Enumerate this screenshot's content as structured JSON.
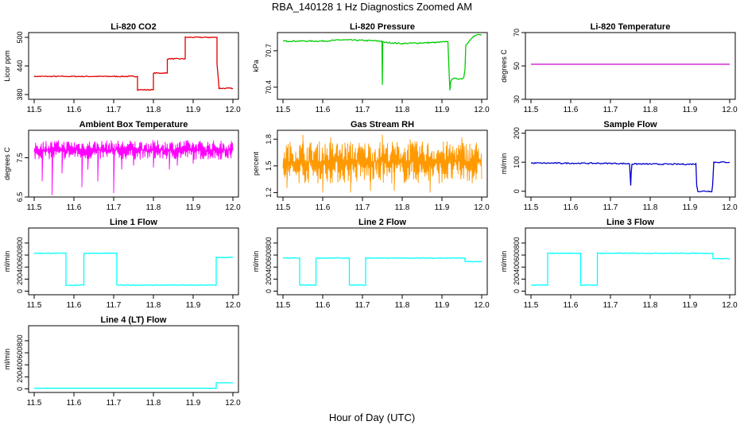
{
  "title": "RBA_140128  1 Hz Diagnostics Zoomed AM",
  "xlabel": "Hour of Day (UTC)",
  "colors": {
    "axis": "#000000"
  },
  "chart_data": [
    {
      "type": "line",
      "title": "Li-820 CO2",
      "ylabel": "Licor ppm",
      "color": "#e00000",
      "xlim": [
        11.5,
        12.0
      ],
      "ylim": [
        370,
        510
      ],
      "xticks": [
        "11.5",
        "11.6",
        "11.7",
        "11.8",
        "11.9",
        "12.0"
      ],
      "yticks": [
        "380",
        "440",
        "500"
      ],
      "series": [
        {
          "style": "step",
          "noise": 1,
          "x": [
            11.5,
            11.76,
            11.76,
            11.8,
            11.8,
            11.835,
            11.835,
            11.88,
            11.88,
            11.96,
            11.96,
            11.965,
            11.965,
            12.0
          ],
          "y": [
            418,
            418,
            390,
            390,
            425,
            425,
            455,
            455,
            500,
            500,
            445,
            395,
            393,
            393
          ]
        }
      ]
    },
    {
      "type": "line",
      "title": "Li-820 Pressure",
      "ylabel": "kPa",
      "color": "#00cc00",
      "xlim": [
        11.5,
        12.0
      ],
      "ylim": [
        70.3,
        70.85
      ],
      "xticks": [
        "11.5",
        "11.6",
        "11.7",
        "11.8",
        "11.9",
        "12.0"
      ],
      "yticks": [
        "70.4",
        "70.7"
      ],
      "series": [
        {
          "style": "line",
          "noise": 0.005,
          "x": [
            11.5,
            11.6,
            11.65,
            11.749,
            11.75,
            11.751,
            11.8,
            11.9,
            11.915,
            11.918,
            11.92,
            11.922,
            11.925,
            11.95,
            11.955,
            11.958,
            11.96,
            11.975,
            11.98,
            11.99,
            12.0
          ],
          "y": [
            70.78,
            70.78,
            70.79,
            70.78,
            70.42,
            70.77,
            70.76,
            70.77,
            70.78,
            70.52,
            70.37,
            70.45,
            70.47,
            70.47,
            70.48,
            70.55,
            70.75,
            70.8,
            70.82,
            70.83,
            70.83
          ]
        }
      ]
    },
    {
      "type": "line",
      "title": "Li-820 Temperature",
      "ylabel": "degrees C",
      "color": "#cc00cc",
      "xlim": [
        11.5,
        12.0
      ],
      "ylim": [
        30,
        70
      ],
      "xticks": [
        "11.5",
        "11.6",
        "11.7",
        "11.8",
        "11.9",
        "12.0"
      ],
      "yticks": [
        "30",
        "50",
        "70"
      ],
      "series": [
        {
          "style": "line",
          "noise": 0,
          "x": [
            11.5,
            12.0
          ],
          "y": [
            51,
            51
          ]
        }
      ]
    },
    {
      "type": "line",
      "title": "Ambient Box Temperature",
      "ylabel": "degrees C",
      "color": "#ff00ff",
      "xlim": [
        11.5,
        12.0
      ],
      "ylim": [
        6.5,
        8.2
      ],
      "xticks": [
        "11.5",
        "11.6",
        "11.7",
        "11.8",
        "11.9",
        "12.0"
      ],
      "yticks": [
        "6.5",
        "7.5"
      ],
      "series": [
        {
          "style": "band",
          "lo": 7.45,
          "hi": 7.95,
          "x": [
            11.5,
            12.0
          ],
          "y": [
            7.7,
            7.7
          ],
          "spikes": [
            [
              11.52,
              6.9
            ],
            [
              11.545,
              6.55
            ],
            [
              11.57,
              7.1
            ],
            [
              11.62,
              6.75
            ],
            [
              11.635,
              7.2
            ],
            [
              11.66,
              6.9
            ],
            [
              11.7,
              6.6
            ],
            [
              11.72,
              7.2
            ],
            [
              11.75,
              7.3
            ],
            [
              11.8,
              7.25
            ],
            [
              11.84,
              7.2
            ],
            [
              11.86,
              7.3
            ],
            [
              11.9,
              7.35
            ]
          ]
        }
      ]
    },
    {
      "type": "line",
      "title": "Gas Stream RH",
      "ylabel": "percent",
      "color": "#ff9900",
      "xlim": [
        11.5,
        12.0
      ],
      "ylim": [
        1.15,
        1.9
      ],
      "xticks": [
        "11.5",
        "11.6",
        "11.7",
        "11.8",
        "11.9",
        "12.0"
      ],
      "yticks": [
        "1.2",
        "1.5",
        "1.8"
      ],
      "series": [
        {
          "style": "band",
          "lo": 1.3,
          "hi": 1.78,
          "x": [
            11.5,
            12.0
          ],
          "y": [
            1.55,
            1.55
          ],
          "spikes": [
            [
              11.51,
              1.25
            ],
            [
              11.55,
              1.85
            ],
            [
              11.6,
              1.2
            ],
            [
              11.62,
              1.82
            ],
            [
              11.67,
              1.2
            ],
            [
              11.72,
              1.22
            ],
            [
              11.75,
              1.85
            ],
            [
              11.78,
              1.22
            ],
            [
              11.82,
              1.8
            ],
            [
              11.87,
              1.2
            ],
            [
              11.95,
              1.82
            ]
          ]
        }
      ]
    },
    {
      "type": "line",
      "title": "Sample Flow",
      "ylabel": "ml/min",
      "color": "#0000cc",
      "xlim": [
        11.5,
        12.0
      ],
      "ylim": [
        -20,
        210
      ],
      "xticks": [
        "11.5",
        "11.6",
        "11.7",
        "11.8",
        "11.9",
        "12.0"
      ],
      "yticks": [
        "0",
        "100",
        "200"
      ],
      "series": [
        {
          "style": "line",
          "noise": 2,
          "x": [
            11.5,
            11.7,
            11.748,
            11.751,
            11.752,
            11.754,
            11.9,
            11.915,
            11.917,
            11.92,
            11.955,
            11.957,
            11.96,
            12.0
          ],
          "y": [
            97,
            96,
            95,
            20,
            60,
            94,
            93,
            94,
            20,
            0,
            0,
            20,
            100,
            100
          ]
        }
      ]
    },
    {
      "type": "line",
      "title": "Line 1 Flow",
      "ylabel": "ml/min",
      "color": "#00ffff",
      "xlim": [
        11.5,
        12.0
      ],
      "ylim": [
        -60,
        1050
      ],
      "xticks": [
        "11.5",
        "11.6",
        "11.7",
        "11.8",
        "11.9",
        "12.0"
      ],
      "yticks": [
        "0",
        "200",
        "400",
        "600",
        "800"
      ],
      "series": [
        {
          "style": "step",
          "noise": 6,
          "x": [
            11.5,
            11.58,
            11.58,
            11.625,
            11.625,
            11.708,
            11.708,
            11.958,
            11.958,
            12.0
          ],
          "y": [
            630,
            630,
            100,
            100,
            630,
            630,
            100,
            100,
            560,
            560
          ]
        }
      ]
    },
    {
      "type": "line",
      "title": "Line 2 Flow",
      "ylabel": "ml/min",
      "color": "#00ffff",
      "xlim": [
        11.5,
        12.0
      ],
      "ylim": [
        -60,
        1050
      ],
      "xticks": [
        "11.5",
        "11.6",
        "11.7",
        "11.8",
        "11.9",
        "12.0"
      ],
      "yticks": [
        "0",
        "200",
        "400",
        "600",
        "800"
      ],
      "series": [
        {
          "style": "step",
          "noise": 5,
          "x": [
            11.5,
            11.542,
            11.542,
            11.583,
            11.583,
            11.667,
            11.667,
            11.708,
            11.708,
            11.958,
            11.958,
            12.0
          ],
          "y": [
            550,
            550,
            100,
            100,
            550,
            550,
            100,
            100,
            550,
            550,
            490,
            490
          ]
        }
      ]
    },
    {
      "type": "line",
      "title": "Line 3 Flow",
      "ylabel": "ml/min",
      "color": "#00ffff",
      "xlim": [
        11.5,
        12.0
      ],
      "ylim": [
        -60,
        1050
      ],
      "xticks": [
        "11.5",
        "11.6",
        "11.7",
        "11.8",
        "11.9",
        "12.0"
      ],
      "yticks": [
        "0",
        "200",
        "400",
        "600",
        "800"
      ],
      "series": [
        {
          "style": "step",
          "noise": 6,
          "x": [
            11.5,
            11.542,
            11.542,
            11.625,
            11.625,
            11.667,
            11.667,
            11.958,
            11.958,
            12.0
          ],
          "y": [
            100,
            100,
            630,
            630,
            100,
            100,
            630,
            630,
            540,
            540
          ]
        }
      ]
    },
    {
      "type": "line",
      "title": "Line 4 (LT) Flow",
      "ylabel": "ml/min",
      "color": "#00ffff",
      "xlim": [
        11.5,
        12.0
      ],
      "ylim": [
        -60,
        1050
      ],
      "xticks": [
        "11.5",
        "11.6",
        "11.7",
        "11.8",
        "11.9",
        "12.0"
      ],
      "yticks": [
        "0",
        "200",
        "400",
        "600",
        "800"
      ],
      "series": [
        {
          "style": "step",
          "noise": 0,
          "x": [
            11.5,
            11.958,
            11.958,
            12.0
          ],
          "y": [
            10,
            10,
            100,
            100
          ]
        }
      ]
    }
  ]
}
